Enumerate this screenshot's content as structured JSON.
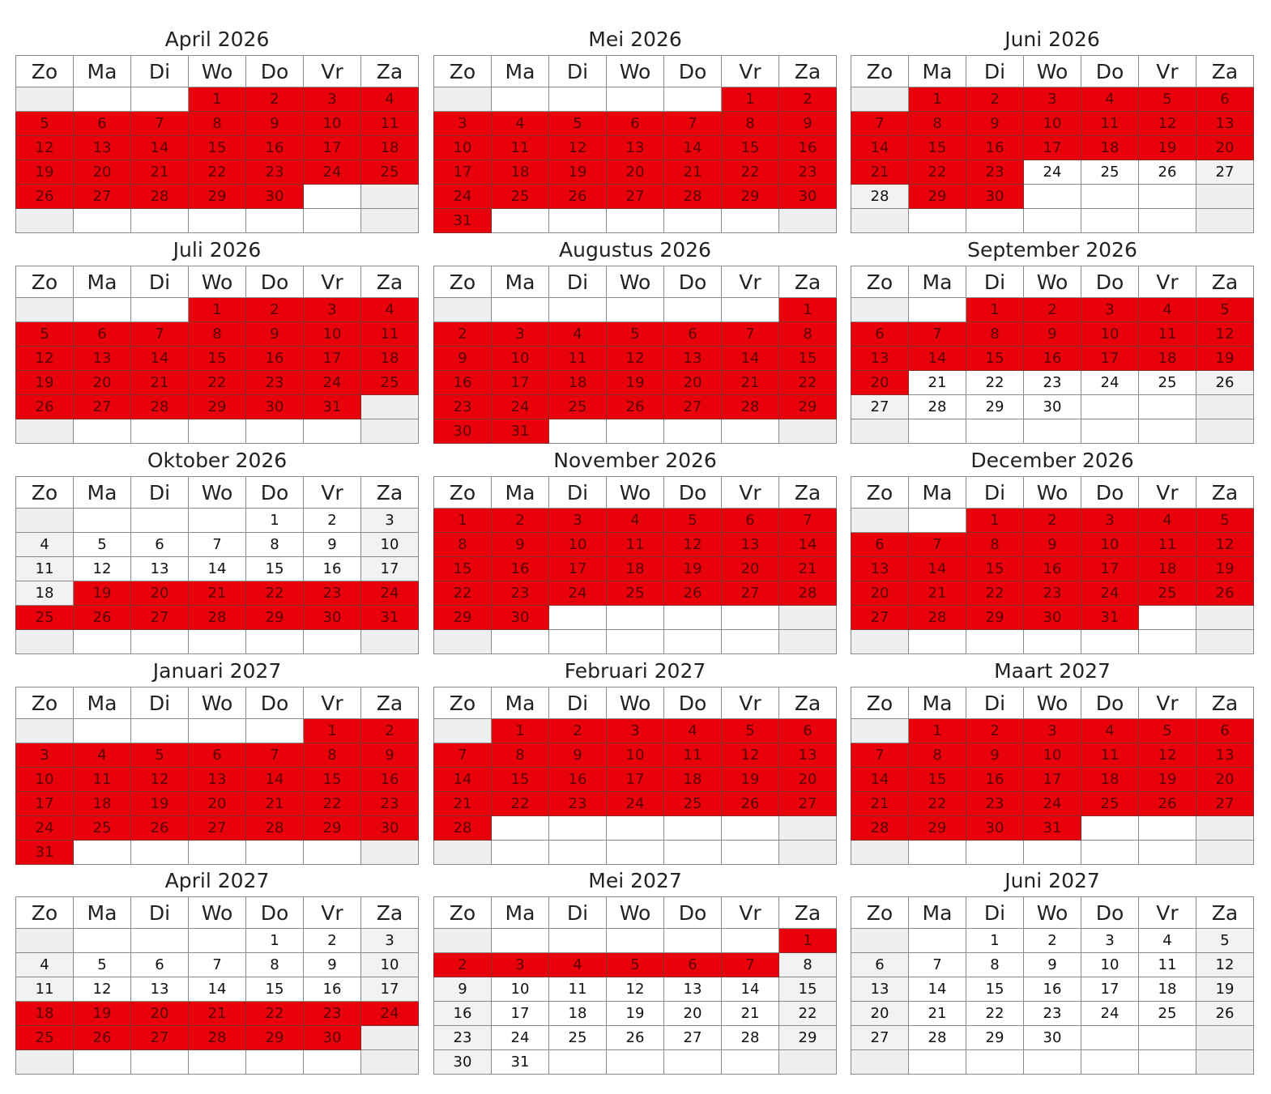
{
  "colors": {
    "booked": "#e8000b",
    "free": "#ffffff",
    "weekend": "#f2f2f2"
  },
  "weekdays": [
    "Zo",
    "Ma",
    "Di",
    "Wo",
    "Do",
    "Vr",
    "Za"
  ],
  "months": [
    {
      "title": "April 2026",
      "offset": 3,
      "days": 30,
      "booked": [
        [
          1,
          30
        ]
      ]
    },
    {
      "title": "Mei 2026",
      "offset": 5,
      "days": 31,
      "booked": [
        [
          1,
          31
        ]
      ]
    },
    {
      "title": "Juni 2026",
      "offset": 1,
      "days": 30,
      "booked": [
        [
          1,
          23
        ],
        [
          29,
          30
        ]
      ]
    },
    {
      "title": "Juli 2026",
      "offset": 3,
      "days": 31,
      "booked": [
        [
          1,
          31
        ]
      ]
    },
    {
      "title": "Augustus 2026",
      "offset": 6,
      "days": 31,
      "booked": [
        [
          1,
          31
        ]
      ]
    },
    {
      "title": "September 2026",
      "offset": 2,
      "days": 30,
      "booked": [
        [
          1,
          20
        ]
      ]
    },
    {
      "title": "Oktober 2026",
      "offset": 4,
      "days": 31,
      "booked": [
        [
          19,
          31
        ]
      ]
    },
    {
      "title": "November 2026",
      "offset": 0,
      "days": 30,
      "booked": [
        [
          1,
          30
        ]
      ]
    },
    {
      "title": "December 2026",
      "offset": 2,
      "days": 31,
      "booked": [
        [
          1,
          31
        ]
      ]
    },
    {
      "title": "Januari 2027",
      "offset": 5,
      "days": 31,
      "booked": [
        [
          1,
          31
        ]
      ]
    },
    {
      "title": "Februari 2027",
      "offset": 1,
      "days": 28,
      "booked": [
        [
          1,
          28
        ]
      ]
    },
    {
      "title": "Maart 2027",
      "offset": 1,
      "days": 31,
      "booked": [
        [
          1,
          31
        ]
      ]
    },
    {
      "title": "April 2027",
      "offset": 4,
      "days": 30,
      "booked": [
        [
          18,
          30
        ]
      ]
    },
    {
      "title": "Mei 2027",
      "offset": 6,
      "days": 31,
      "booked": [
        [
          1,
          7
        ]
      ]
    },
    {
      "title": "Juni 2027",
      "offset": 2,
      "days": 30,
      "booked": []
    }
  ]
}
